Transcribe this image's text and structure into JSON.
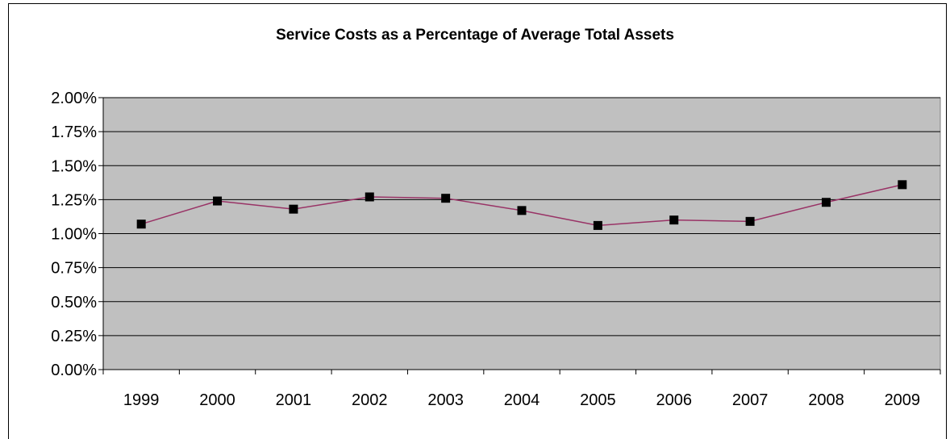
{
  "chart_data": {
    "type": "line",
    "title": "Service Costs as a Percentage of Average Total Assets",
    "xlabel": "",
    "ylabel": "",
    "categories": [
      "1999",
      "2000",
      "2001",
      "2002",
      "2003",
      "2004",
      "2005",
      "2006",
      "2007",
      "2008",
      "2009"
    ],
    "series": [
      {
        "values": [
          1.07,
          1.24,
          1.18,
          1.27,
          1.26,
          1.17,
          1.06,
          1.1,
          1.09,
          1.23,
          1.36
        ]
      }
    ],
    "ylim": [
      0,
      2.0
    ],
    "yticks": [
      "0.00%",
      "0.25%",
      "0.50%",
      "0.75%",
      "1.00%",
      "1.25%",
      "1.50%",
      "1.75%",
      "2.00%"
    ],
    "grid": true,
    "legend": "none",
    "colors": {
      "plot_background": "#c0c0c0",
      "line": "#993366",
      "marker": "#000000",
      "gridline": "#000000"
    }
  }
}
